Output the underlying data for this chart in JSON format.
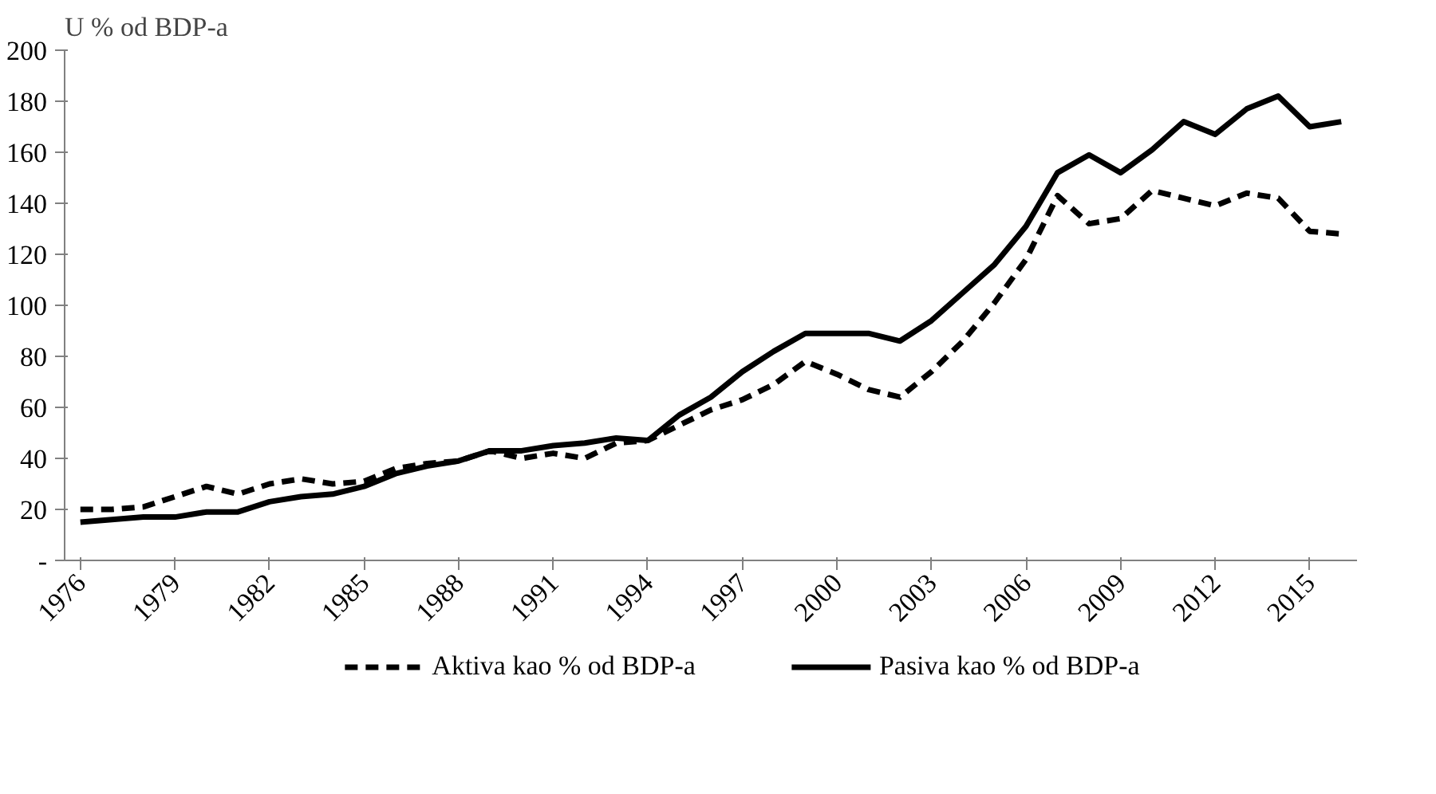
{
  "chart_data": {
    "type": "line",
    "ylabel": "U % od BDP-a",
    "x": [
      1976,
      1977,
      1978,
      1979,
      1980,
      1981,
      1982,
      1983,
      1984,
      1985,
      1986,
      1987,
      1988,
      1989,
      1990,
      1991,
      1992,
      1993,
      1994,
      1995,
      1996,
      1997,
      1998,
      1999,
      2000,
      2001,
      2002,
      2003,
      2004,
      2005,
      2006,
      2007,
      2008,
      2009,
      2010,
      2011,
      2012,
      2013,
      2014,
      2015,
      2016
    ],
    "series": [
      {
        "name": "Aktiva kao % od BDP-a",
        "color": "#000000",
        "line_style": "dashed",
        "values": [
          20,
          20,
          21,
          25,
          29,
          26,
          30,
          32,
          30,
          31,
          36,
          38,
          39,
          43,
          40,
          42,
          40,
          46,
          47,
          53,
          59,
          63,
          69,
          78,
          73,
          67,
          64,
          74,
          86,
          101,
          118,
          143,
          132,
          134,
          145,
          142,
          139,
          144,
          142,
          129,
          128
        ]
      },
      {
        "name": "Pasiva kao % od BDP-a",
        "color": "#000000",
        "line_style": "solid",
        "values": [
          15,
          16,
          17,
          17,
          19,
          19,
          23,
          25,
          26,
          29,
          34,
          37,
          39,
          43,
          43,
          45,
          46,
          48,
          47,
          57,
          64,
          74,
          82,
          89,
          89,
          89,
          86,
          94,
          105,
          116,
          131,
          152,
          159,
          152,
          161,
          172,
          167,
          177,
          182,
          170,
          172
        ]
      }
    ],
    "xlim": [
      1975.5,
      2016.5
    ],
    "xticks": [
      1976,
      1979,
      1982,
      1985,
      1988,
      1991,
      1994,
      1997,
      2000,
      2003,
      2006,
      2009,
      2012,
      2015
    ],
    "ylim": [
      0,
      200
    ],
    "yticks": [
      {
        "value": 0,
        "label": "-"
      },
      20,
      40,
      60,
      80,
      100,
      120,
      140,
      160,
      180,
      200
    ],
    "grid": false,
    "legend": "bottom"
  }
}
